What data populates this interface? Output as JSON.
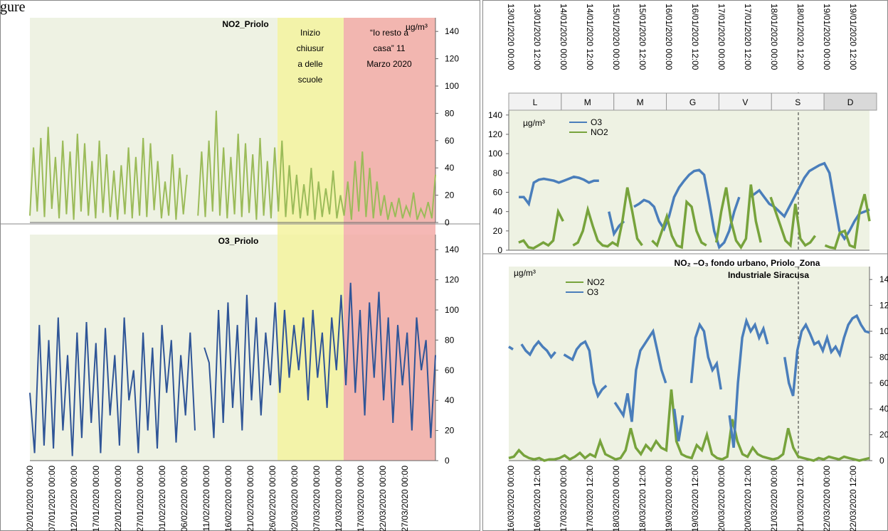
{
  "caption_fragment": "gure",
  "chart_data": [
    {
      "type": "line",
      "title": "NO2_Priolo",
      "unit": "µg/m³",
      "ylim": [
        0,
        150
      ],
      "yticks": [
        0,
        20,
        40,
        60,
        80,
        100,
        120,
        140
      ],
      "xticks": [
        "02/01/2020 00:00",
        "07/01/2020 00:00",
        "12/01/2020 00:00",
        "17/01/2020 00:00",
        "22/01/2020 00:00",
        "27/01/2020 00:00",
        "01/02/2020 00:00",
        "06/02/2020 00:00",
        "11/02/2020 00:00",
        "16/02/2020 00:00",
        "21/02/2020 00:00",
        "26/02/2020 00:00",
        "02/03/2020 00:00",
        "07/03/2020 00:00",
        "12/03/2020 00:00",
        "17/03/2020 00:00",
        "22/03/2020 00:00",
        "27/03/2020 00:00"
      ],
      "annotations": [
        "Inizio chiusur a delle scuole",
        "“Io resto a casa” 11 Marzo 2020"
      ],
      "series": [
        {
          "name": "NO2",
          "color": "#9bbb59",
          "values": [
            5,
            55,
            8,
            62,
            4,
            70,
            10,
            48,
            3,
            60,
            6,
            52,
            2,
            65,
            8,
            58,
            5,
            45,
            3,
            60,
            7,
            50,
            4,
            38,
            2,
            42,
            6,
            55,
            3,
            48,
            5,
            62,
            4,
            58,
            9,
            45,
            3,
            30,
            5,
            50,
            2,
            40,
            6,
            35,
            null,
            null,
            5,
            52,
            4,
            60,
            8,
            82,
            5,
            55,
            3,
            48,
            6,
            65,
            4,
            58,
            7,
            50,
            2,
            62,
            5,
            45,
            3,
            55,
            8,
            60,
            4,
            42,
            6,
            35,
            3,
            28,
            5,
            40,
            2,
            30,
            4,
            25,
            6,
            38,
            3,
            20,
            5,
            30,
            2,
            45,
            8,
            52,
            4,
            40,
            3,
            30,
            5,
            20,
            2,
            15,
            4,
            18,
            3,
            12,
            5,
            22,
            2,
            10,
            4,
            15,
            3,
            35
          ]
        }
      ]
    },
    {
      "type": "line",
      "title": "O3_Priolo",
      "ylim": [
        0,
        150
      ],
      "yticks": [
        0,
        20,
        40,
        60,
        80,
        100,
        120,
        140
      ],
      "series": [
        {
          "name": "O3",
          "color": "#2f5597",
          "values": [
            45,
            5,
            90,
            10,
            80,
            8,
            95,
            20,
            70,
            3,
            85,
            15,
            92,
            25,
            78,
            5,
            88,
            30,
            70,
            10,
            95,
            40,
            60,
            5,
            85,
            20,
            75,
            8,
            90,
            45,
            80,
            12,
            70,
            30,
            85,
            20,
            null,
            75,
            65,
            15,
            100,
            25,
            105,
            35,
            90,
            20,
            110,
            40,
            95,
            30,
            85,
            50,
            105,
            45,
            100,
            55,
            90,
            60,
            95,
            40,
            100,
            55,
            85,
            35,
            95,
            60,
            110,
            50,
            118,
            45,
            100,
            30,
            105,
            55,
            112,
            40,
            95,
            25,
            90,
            50,
            85,
            20,
            95,
            60,
            80,
            15,
            70
          ]
        }
      ]
    },
    {
      "type": "line",
      "unit": "µg/m³",
      "ylim": [
        0,
        145
      ],
      "yticks": [
        0,
        20,
        40,
        60,
        80,
        100,
        120,
        140
      ],
      "xticks": [
        "13/01/2020 00:00",
        "13/01/2020 12:00",
        "14/01/2020 00:00",
        "14/01/2020 12:00",
        "15/01/2020 00:00",
        "15/01/2020 12:00",
        "16/01/2020 00:00",
        "16/01/2020 12:00",
        "17/01/2020 00:00",
        "17/01/2020 12:00",
        "18/01/2020 00:00",
        "18/01/2020 12:00",
        "19/01/2020 00:00",
        "19/01/2020 12:00"
      ],
      "day_labels": [
        "L",
        "M",
        "M",
        "G",
        "V",
        "S",
        "D"
      ],
      "series": [
        {
          "name": "O3",
          "color": "#4a7ebb",
          "values": [
            34,
            null,
            55,
            55,
            48,
            70,
            73,
            74,
            73,
            72,
            70,
            72,
            74,
            76,
            75,
            73,
            70,
            72,
            72,
            null,
            40,
            17,
            25,
            30,
            null,
            45,
            48,
            52,
            50,
            45,
            30,
            22,
            35,
            55,
            65,
            72,
            78,
            82,
            83,
            78,
            50,
            20,
            3,
            8,
            20,
            40,
            55,
            null,
            55,
            58,
            62,
            55,
            48,
            45,
            40,
            35,
            45,
            55,
            65,
            75,
            82,
            85,
            88,
            90,
            80,
            50,
            20,
            12,
            20,
            30,
            38,
            40,
            42
          ]
        },
        {
          "name": "NO2",
          "color": "#77a33c",
          "values": [
            22,
            null,
            8,
            10,
            3,
            2,
            5,
            8,
            5,
            10,
            40,
            30,
            null,
            5,
            8,
            20,
            42,
            25,
            10,
            5,
            4,
            8,
            5,
            30,
            65,
            40,
            12,
            5,
            null,
            10,
            5,
            20,
            35,
            15,
            5,
            3,
            50,
            45,
            20,
            8,
            5,
            null,
            8,
            40,
            65,
            30,
            10,
            3,
            12,
            68,
            30,
            8,
            null,
            55,
            40,
            25,
            10,
            5,
            48,
            12,
            5,
            8,
            15,
            null,
            5,
            3,
            2,
            18,
            20,
            5,
            3,
            40,
            58,
            30
          ]
        }
      ]
    },
    {
      "type": "line",
      "title_lines": [
        "NO₂ –O₃ fondo urbano, Priolo_Zona",
        "Industriale Siracusa"
      ],
      "unit": "µg/m³",
      "ylim": [
        0,
        150
      ],
      "yticks": [
        0,
        20,
        40,
        60,
        80,
        100,
        120,
        140
      ],
      "xticks": [
        "16/03/2020 00:00",
        "16/03/2020 12:00",
        "17/03/2020 00:00",
        "17/03/2020 12:00",
        "18/03/2020 00:00",
        "18/03/2020 12:00",
        "19/03/2020 00:00",
        "19/03/2020 12:00",
        "20/03/2020 00:00",
        "20/03/2020 12:00",
        "21/03/2020 00:00",
        "21/03/2020 12:00",
        "22/03/2020 00:00",
        "22/03/2020 12:00"
      ],
      "series": [
        {
          "name": "NO2",
          "color": "#77a33c",
          "values": [
            2,
            3,
            8,
            4,
            2,
            1,
            2,
            0,
            1,
            1,
            2,
            4,
            1,
            3,
            6,
            2,
            5,
            3,
            15,
            5,
            3,
            1,
            2,
            8,
            25,
            10,
            5,
            12,
            8,
            15,
            10,
            8,
            55,
            15,
            5,
            3,
            2,
            12,
            8,
            20,
            5,
            2,
            1,
            3,
            32,
            15,
            5,
            3,
            10,
            5,
            3,
            2,
            1,
            2,
            5,
            25,
            10,
            3,
            2,
            1,
            0,
            2,
            1,
            3,
            2,
            1,
            3,
            2,
            1,
            0,
            1,
            2
          ]
        },
        {
          "name": "O3",
          "color": "#4a7ebb",
          "values": [
            88,
            86,
            null,
            90,
            85,
            82,
            88,
            92,
            88,
            85,
            80,
            84,
            null,
            82,
            80,
            78,
            86,
            90,
            92,
            85,
            60,
            50,
            55,
            58,
            null,
            45,
            40,
            35,
            52,
            30,
            70,
            85,
            90,
            95,
            100,
            85,
            70,
            60,
            null,
            40,
            15,
            35,
            null,
            60,
            95,
            105,
            100,
            80,
            70,
            75,
            55,
            null,
            35,
            10,
            60,
            95,
            108,
            100,
            105,
            95,
            102,
            90,
            null,
            95,
            null,
            80,
            60,
            50,
            85,
            100,
            105,
            98,
            90,
            92,
            85,
            95,
            84,
            88,
            82,
            95,
            105,
            110,
            112,
            105,
            100,
            99
          ]
        }
      ]
    }
  ]
}
